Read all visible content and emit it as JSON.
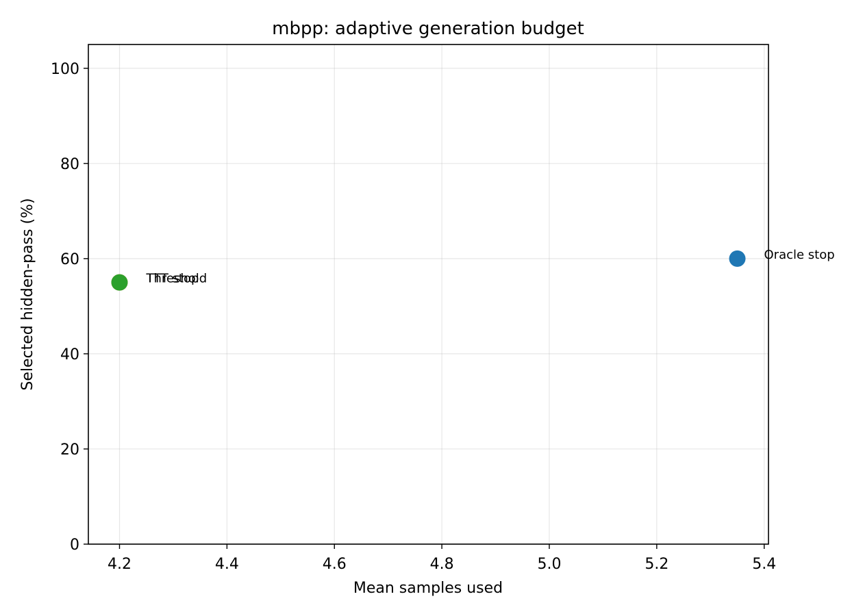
{
  "chart_data": {
    "type": "scatter",
    "title": "mbpp: adaptive generation budget",
    "xlabel": "Mean samples used",
    "ylabel": "Selected hidden-pass (%)",
    "xlim": [
      4.142,
      5.408
    ],
    "ylim": [
      0,
      105
    ],
    "xticks": [
      4.2,
      4.4,
      4.6,
      4.8,
      5.0,
      5.2,
      5.4
    ],
    "xtick_labels": [
      "4.2",
      "4.4",
      "4.6",
      "4.8",
      "5.0",
      "5.2",
      "5.4"
    ],
    "yticks": [
      0,
      20,
      40,
      60,
      80,
      100
    ],
    "ytick_labels": [
      "0",
      "20",
      "40",
      "60",
      "80",
      "100"
    ],
    "grid": true,
    "points": [
      {
        "label": "Oracle stop",
        "x": 5.35,
        "y": 60,
        "color": "#1f77b4"
      },
      {
        "label": "Threshold",
        "x": 4.2,
        "y": 55,
        "color": "#ff7f0e"
      },
      {
        "label": "TTT stop",
        "x": 4.2,
        "y": 55,
        "color": "#2ca02c"
      }
    ]
  }
}
